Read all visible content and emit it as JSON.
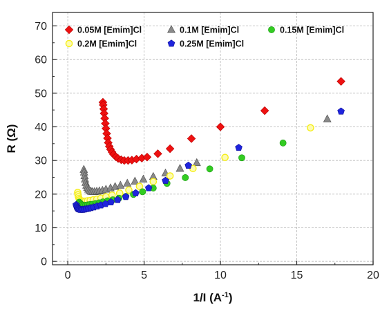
{
  "chart_data": {
    "type": "scatter",
    "xlabel": "1/I (A",
    "xlabel_sup": "-1",
    "xlabel_end": ")",
    "ylabel": "R (Ω)",
    "xlim": [
      -1,
      20
    ],
    "ylim": [
      -1,
      74
    ],
    "xticks": [
      0,
      5,
      10,
      15,
      20
    ],
    "yticks": [
      0,
      10,
      20,
      30,
      40,
      50,
      60,
      70
    ],
    "grid": true,
    "legend_position": "top",
    "series": [
      {
        "name": "0.05M [Emim]Cl",
        "marker": "diamond",
        "color": "#ee1111",
        "x": [
          2.3,
          2.32,
          2.35,
          2.38,
          2.42,
          2.46,
          2.5,
          2.55,
          2.6,
          2.65,
          2.72,
          2.8,
          2.9,
          3.0,
          3.15,
          3.3,
          3.5,
          3.7,
          3.95,
          4.2,
          4.5,
          4.85,
          5.2,
          5.9,
          6.7,
          8.1,
          10.0,
          12.9,
          17.9
        ],
        "y": [
          47.3,
          46.5,
          45.3,
          44.0,
          42.5,
          41.0,
          39.5,
          38.0,
          36.6,
          35.3,
          34.2,
          33.3,
          32.5,
          31.8,
          31.1,
          30.6,
          30.2,
          30.0,
          30.0,
          30.1,
          30.4,
          30.7,
          31.0,
          32.0,
          33.5,
          36.5,
          40.0,
          44.8,
          53.5
        ]
      },
      {
        "name": "0.1M [Emim]Cl",
        "marker": "triangle",
        "color": "#8a8a8a",
        "x": [
          1.05,
          1.07,
          1.1,
          1.13,
          1.17,
          1.22,
          1.28,
          1.35,
          1.43,
          1.52,
          1.62,
          1.75,
          1.9,
          2.07,
          2.27,
          2.5,
          2.8,
          3.1,
          3.45,
          3.9,
          4.4,
          4.95,
          5.6,
          6.4,
          7.35,
          8.45,
          17.0
        ],
        "y": [
          27.3,
          26.5,
          25.4,
          24.4,
          23.4,
          22.6,
          21.9,
          21.4,
          21.0,
          20.8,
          20.7,
          20.7,
          20.8,
          20.9,
          21.1,
          21.4,
          21.8,
          22.2,
          22.6,
          23.2,
          23.8,
          24.4,
          25.2,
          26.2,
          27.6,
          29.3,
          42.3
        ]
      },
      {
        "name": "0.15M [Emim]Cl",
        "marker": "circle",
        "color": "#33cc22",
        "x": [
          0.75,
          0.8,
          0.87,
          0.95,
          1.05,
          1.17,
          1.3,
          1.45,
          1.62,
          1.82,
          2.05,
          2.3,
          2.6,
          2.95,
          3.35,
          3.8,
          4.3,
          4.9,
          5.6,
          6.5,
          7.7,
          9.3,
          11.4,
          14.1
        ],
        "y": [
          17.6,
          17.3,
          17.0,
          16.8,
          16.7,
          16.7,
          16.8,
          16.9,
          17.0,
          17.2,
          17.4,
          17.7,
          18.0,
          18.3,
          18.8,
          19.3,
          19.9,
          20.7,
          21.8,
          23.2,
          24.9,
          27.5,
          30.8,
          35.2
        ]
      },
      {
        "name": "0.2M [Emim]Cl",
        "marker": "circle-open",
        "color": "#f5ee1a",
        "x": [
          0.65,
          0.67,
          0.7,
          0.74,
          0.79,
          0.86,
          0.94,
          1.04,
          1.16,
          1.3,
          1.47,
          1.67,
          1.9,
          2.17,
          2.5,
          2.9,
          3.4,
          4.0,
          4.7,
          5.6,
          6.7,
          8.2,
          10.3,
          15.9
        ],
        "y": [
          20.5,
          19.8,
          19.2,
          18.7,
          18.3,
          18.0,
          17.9,
          17.9,
          17.9,
          18.0,
          18.1,
          18.3,
          18.5,
          18.8,
          19.2,
          19.7,
          20.3,
          21.2,
          22.3,
          23.7,
          25.4,
          27.6,
          30.9,
          39.7
        ]
      },
      {
        "name": "0.25M [Emim]Cl",
        "marker": "pentagon",
        "color": "#1f24dd",
        "x": [
          0.55,
          0.57,
          0.6,
          0.64,
          0.69,
          0.75,
          0.82,
          0.9,
          0.99,
          1.1,
          1.22,
          1.36,
          1.52,
          1.7,
          1.92,
          2.17,
          2.47,
          2.83,
          3.27,
          3.8,
          4.45,
          5.3,
          6.4,
          7.9,
          11.2,
          17.9
        ],
        "y": [
          16.8,
          16.4,
          16.1,
          15.8,
          15.6,
          15.5,
          15.4,
          15.4,
          15.4,
          15.5,
          15.6,
          15.7,
          15.9,
          16.1,
          16.4,
          16.7,
          17.1,
          17.6,
          18.3,
          19.2,
          20.3,
          21.8,
          24.0,
          28.5,
          33.8,
          44.6
        ]
      }
    ]
  }
}
